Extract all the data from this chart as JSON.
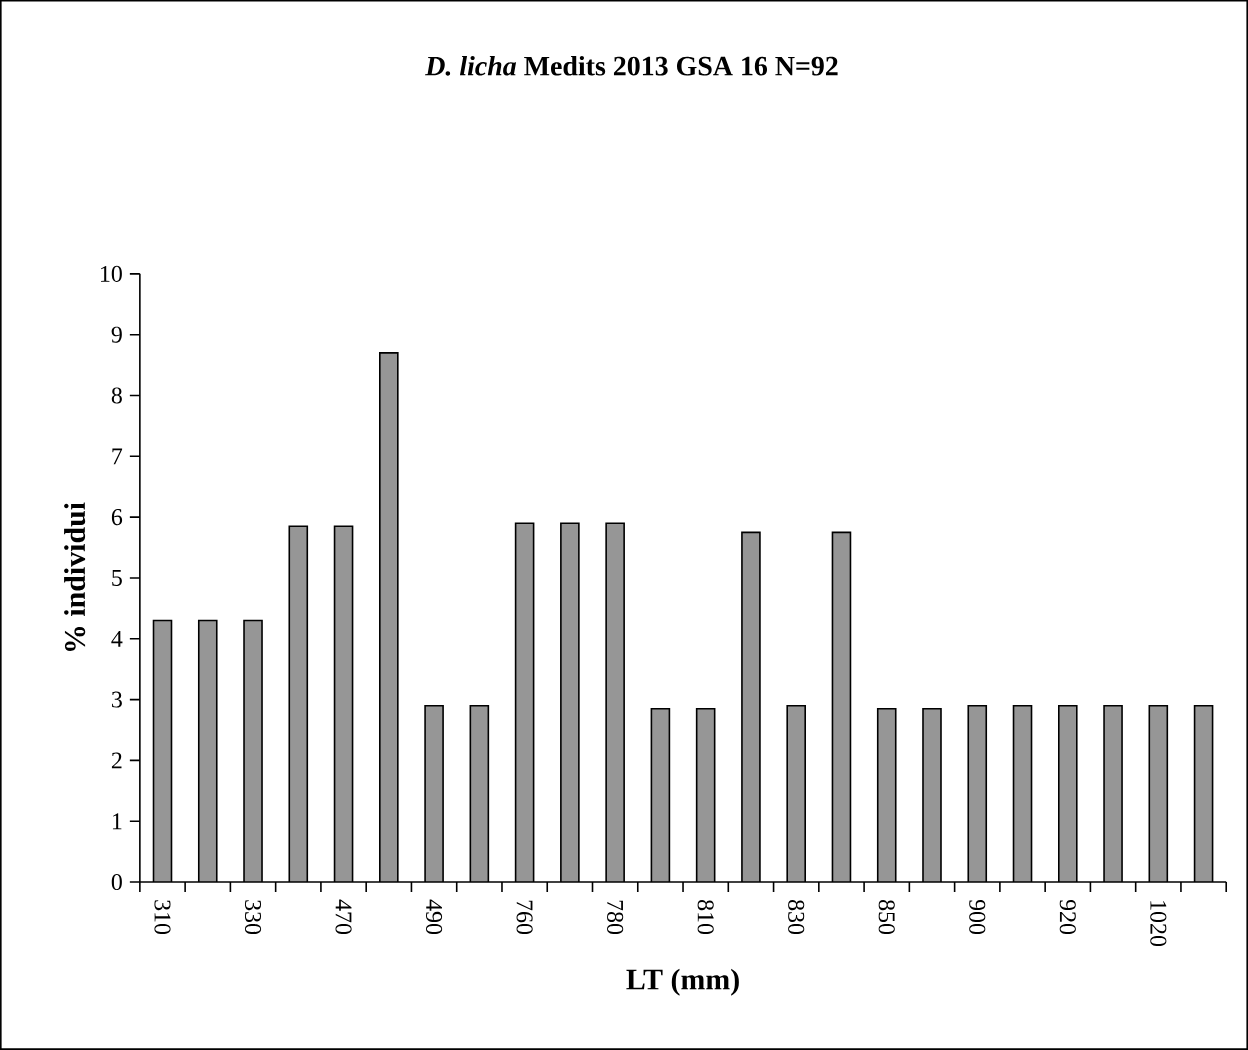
{
  "chart_data": {
    "type": "bar",
    "title": "*D. licha* Medits 2013 GSA 16 N=92",
    "xlabel": "LT (mm)",
    "ylabel": "% individui",
    "categories": [
      "310",
      null,
      "330",
      null,
      "470",
      null,
      "490",
      null,
      "760",
      null,
      "780",
      null,
      "810",
      null,
      "830",
      null,
      "850",
      null,
      "900",
      null,
      "920",
      null,
      "1020",
      null
    ],
    "values": [
      4.3,
      4.3,
      4.3,
      5.85,
      5.85,
      8.7,
      2.9,
      2.9,
      5.9,
      5.9,
      5.9,
      2.85,
      2.85,
      5.75,
      2.9,
      5.75,
      2.85,
      2.85,
      2.9,
      2.9,
      2.9,
      2.9,
      2.9,
      2.9
    ],
    "color": "#969696",
    "ylim": [
      0,
      10
    ],
    "yticks": [
      0,
      1,
      2,
      3,
      4,
      5,
      6,
      7,
      8,
      9,
      10
    ],
    "grid": false
  }
}
